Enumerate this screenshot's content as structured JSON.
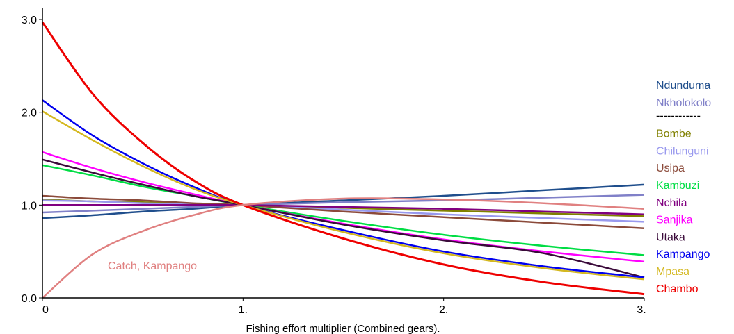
{
  "chart_data": {
    "type": "line",
    "title": "",
    "xlabel": "Fishing effort multiplier (Combined gears).",
    "ylabel": "",
    "xlim": [
      0,
      3
    ],
    "ylim": [
      0,
      3
    ],
    "x_ticks": [
      "0",
      "1.",
      "2.",
      "3."
    ],
    "y_ticks": [
      "0.0",
      "1.0",
      "2.0",
      "3.0"
    ],
    "grid": false,
    "legend_position": "right",
    "x": [
      0,
      0.25,
      0.5,
      0.75,
      1,
      1.5,
      2,
      2.5,
      3
    ],
    "legend_separator": "------------",
    "annotation": {
      "text": "Catch, Kampango",
      "color": "#e08080"
    },
    "series": [
      {
        "name": "Ndunduma",
        "color": "#1f4e8c",
        "values": [
          0.86,
          0.89,
          0.93,
          0.96,
          1.0,
          1.05,
          1.1,
          1.16,
          1.22
        ]
      },
      {
        "name": "Nkholokolo",
        "color": "#8080c8",
        "values": [
          0.92,
          0.94,
          0.96,
          0.98,
          1.0,
          1.03,
          1.05,
          1.08,
          1.11
        ]
      },
      {
        "name": "Bombe",
        "color": "#808000",
        "values": [
          1.06,
          1.04,
          1.03,
          1.01,
          1.0,
          0.97,
          0.94,
          0.91,
          0.88
        ]
      },
      {
        "name": "Chilunguni",
        "color": "#9999ee",
        "values": [
          1.05,
          1.04,
          1.02,
          1.01,
          1.0,
          0.95,
          0.9,
          0.86,
          0.82
        ]
      },
      {
        "name": "Usipa",
        "color": "#8b4a3a",
        "values": [
          1.1,
          1.07,
          1.05,
          1.02,
          1.0,
          0.93,
          0.87,
          0.81,
          0.75
        ]
      },
      {
        "name": "Kambuzi",
        "color": "#00dd44",
        "values": [
          1.43,
          1.32,
          1.2,
          1.1,
          1.0,
          0.83,
          0.68,
          0.56,
          0.46
        ]
      },
      {
        "name": "Nchila",
        "color": "#800080",
        "values": [
          1.0,
          1.0,
          1.0,
          1.0,
          1.0,
          0.98,
          0.96,
          0.93,
          0.9
        ]
      },
      {
        "name": "Sanjika",
        "color": "#ff00ff",
        "values": [
          1.57,
          1.4,
          1.25,
          1.12,
          1.0,
          0.8,
          0.63,
          0.5,
          0.39
        ]
      },
      {
        "name": "Utaka",
        "color": "#3a0a3a",
        "values": [
          1.49,
          1.35,
          1.22,
          1.1,
          1.0,
          0.79,
          0.62,
          0.48,
          0.22
        ]
      },
      {
        "name": "Kampango",
        "color": "#0000ee",
        "values": [
          2.13,
          1.75,
          1.45,
          1.2,
          1.0,
          0.73,
          0.5,
          0.34,
          0.22
        ]
      },
      {
        "name": "Mpasa",
        "color": "#d4b820",
        "values": [
          2.01,
          1.7,
          1.42,
          1.18,
          1.0,
          0.71,
          0.48,
          0.32,
          0.2
        ]
      },
      {
        "name": "Chambo",
        "color": "#ee0000",
        "values": [
          2.97,
          2.2,
          1.67,
          1.27,
          1.0,
          0.64,
          0.36,
          0.17,
          0.04
        ]
      },
      {
        "name": "",
        "color": "#e08080",
        "values": [
          0.0,
          0.47,
          0.72,
          0.89,
          1.0,
          1.07,
          1.06,
          1.02,
          0.96
        ]
      }
    ]
  }
}
